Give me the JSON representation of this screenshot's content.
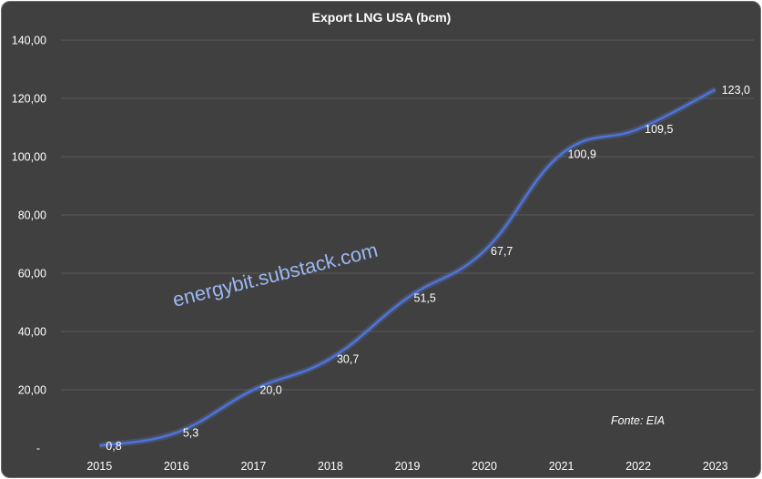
{
  "chart_data": {
    "type": "line",
    "title": "Export LNG USA (bcm)",
    "xlabel": "",
    "ylabel": "",
    "x": [
      "2015",
      "2016",
      "2017",
      "2018",
      "2019",
      "2020",
      "2021",
      "2022",
      "2023"
    ],
    "series": [
      {
        "values": [
          0.8,
          5.3,
          20.0,
          30.7,
          51.5,
          67.7,
          100.9,
          109.5,
          123.0
        ],
        "data_labels": [
          "0,8",
          "5,3",
          "20,0",
          "30,7",
          "51,5",
          "67,7",
          "100,9",
          "109,5",
          "123,0"
        ],
        "color": "#4e74d9",
        "smooth": true
      }
    ],
    "ylim": [
      0,
      140
    ],
    "yticks": [
      0,
      20,
      40,
      60,
      80,
      100,
      120,
      140
    ],
    "ytick_labels": [
      "-",
      "20,00",
      "40,00",
      "60,00",
      "80,00",
      "100,00",
      "120,00",
      "140,00"
    ],
    "grid": "horizontal",
    "legend": "none",
    "background": "#404040"
  },
  "watermark": "energybit.substack.com",
  "source_note": "Fonte: EIA"
}
